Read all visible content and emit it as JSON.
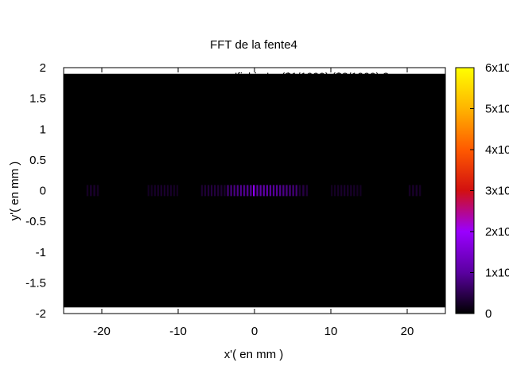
{
  "chart_data": {
    "type": "heatmap",
    "title": "FFT de la fente4",
    "xlabel": "x'( en mm )",
    "ylabel": "y'( en mm )",
    "xlim": [
      -25,
      25
    ],
    "ylim": [
      -2,
      2
    ],
    "xticks": [
      -20,
      -10,
      0,
      10,
      20
    ],
    "xtick_labels": [
      "-20",
      "-10",
      "0",
      "10",
      "20"
    ],
    "yticks": [
      2,
      1.5,
      1,
      0.5,
      0,
      -0.5,
      -1,
      -1.5,
      -2
    ],
    "ytick_labels": [
      "2",
      "1.5",
      "1",
      "0.5",
      "0",
      "-0.5",
      "-1",
      "-1.5",
      "-2"
    ],
    "data_extent": {
      "x": [
        -25,
        25
      ],
      "y": [
        -1.9,
        1.9
      ]
    },
    "legend_text": "'fichier' u ($1/1000):($2/1000):3",
    "colorbar": {
      "range": [
        0,
        6
      ],
      "ticks": [
        0,
        1,
        2,
        3,
        4,
        5,
        6
      ],
      "tick_labels": [
        "0",
        "1x10",
        "2x10",
        "3x10",
        "4x10",
        "5x10",
        "6x10"
      ],
      "palette": [
        "#000000",
        "#5a00a0",
        "#9a00ff",
        "#d21010",
        "#ff5a00",
        "#ffb400",
        "#ffff00"
      ]
    },
    "background_color": "#000000",
    "intensity_band": {
      "y_center": 0,
      "y_halfwidth": 0.09,
      "groups": [
        {
          "x_start": -22,
          "x_end": -20.2,
          "stripes": 4,
          "intensity": 0.05
        },
        {
          "x_start": -14,
          "x_end": -9.8,
          "stripes": 10,
          "intensity": 0.05
        },
        {
          "x_start": -7,
          "x_end": -3.6,
          "stripes": 8,
          "intensity": 0.07
        },
        {
          "x_start": -3.6,
          "x_end": 5.8,
          "stripes": 22,
          "intensity": 0.18
        },
        {
          "x_start": 5.8,
          "x_end": 7.2,
          "stripes": 3,
          "intensity": 0.07
        },
        {
          "x_start": 10,
          "x_end": 14.2,
          "stripes": 10,
          "intensity": 0.05
        },
        {
          "x_start": 20.2,
          "x_end": 22,
          "stripes": 4,
          "intensity": 0.05
        }
      ],
      "peak": {
        "x": -0.1,
        "intensity": 0.3
      }
    }
  }
}
